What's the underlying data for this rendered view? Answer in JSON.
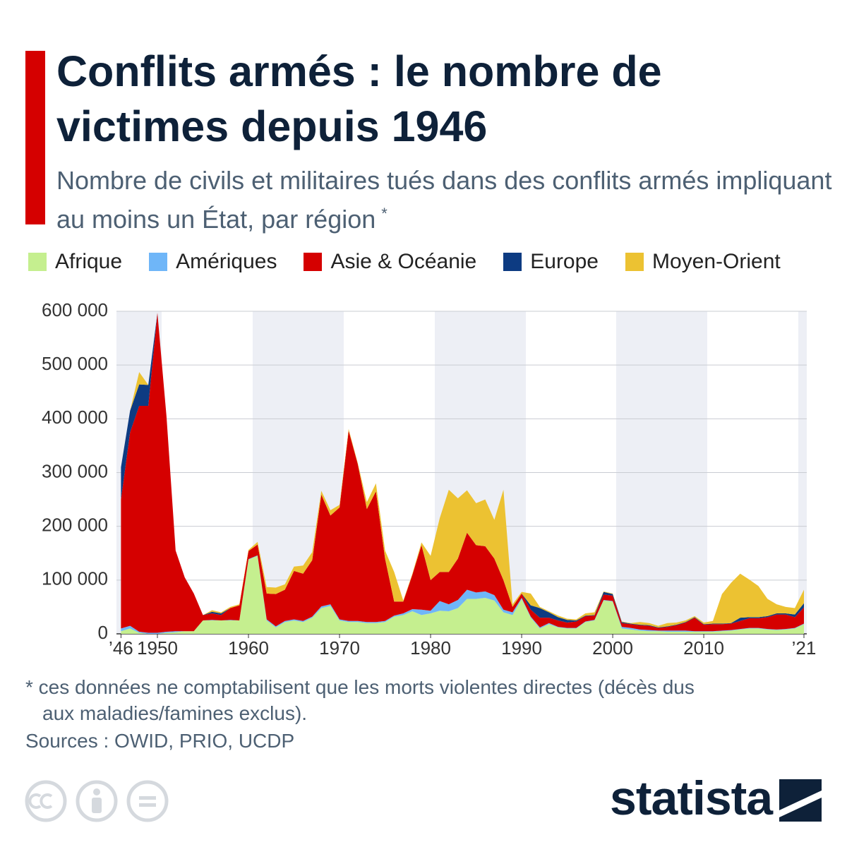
{
  "chart_data": {
    "type": "stacked_area",
    "title": "Conflits armés : le nombre de victimes depuis 1946",
    "subtitle": "Nombre de civils et militaires tués dans des conflits armés impliquant au moins un État, par région",
    "subtitle_note": "*",
    "footnote": "* ces données ne comptabilisent que les morts violentes directes (décès dus aux maladies/famines exclus).",
    "source": "Sources : OWID, PRIO, UCDP",
    "brand": "statista",
    "x": [
      1946,
      1947,
      1948,
      1949,
      1950,
      1951,
      1952,
      1953,
      1954,
      1955,
      1956,
      1957,
      1958,
      1959,
      1960,
      1961,
      1962,
      1963,
      1964,
      1965,
      1966,
      1967,
      1968,
      1969,
      1970,
      1971,
      1972,
      1973,
      1974,
      1975,
      1976,
      1977,
      1978,
      1979,
      1980,
      1981,
      1982,
      1983,
      1984,
      1985,
      1986,
      1987,
      1988,
      1989,
      1990,
      1991,
      1992,
      1993,
      1994,
      1995,
      1996,
      1997,
      1998,
      1999,
      2000,
      2001,
      2002,
      2003,
      2004,
      2005,
      2006,
      2007,
      2008,
      2009,
      2010,
      2011,
      2012,
      2013,
      2014,
      2015,
      2016,
      2017,
      2018,
      2019,
      2020,
      2021
    ],
    "xlim": [
      1946,
      2021
    ],
    "xticks": [
      {
        "value": 1946,
        "label": "’46"
      },
      1950,
      1960,
      1970,
      1980,
      1990,
      2000,
      2010,
      {
        "value": 2021,
        "label": "’21"
      }
    ],
    "ylim": [
      0,
      600000
    ],
    "yticks": [
      0,
      {
        "value": 100000,
        "label": "100 000"
      },
      {
        "value": 200000,
        "label": "200 000"
      },
      {
        "value": 300000,
        "label": "300 000"
      },
      {
        "value": 400000,
        "label": "400 000"
      },
      {
        "value": 500000,
        "label": "500 000"
      },
      {
        "value": 600000,
        "label": "600 000"
      }
    ],
    "grid": true,
    "series": [
      {
        "name": "Afrique",
        "color": "#c5ef8f",
        "values": [
          5000,
          10000,
          2000,
          0,
          0,
          2000,
          3000,
          5000,
          5000,
          25000,
          25000,
          25000,
          25000,
          25000,
          138000,
          145000,
          25000,
          12000,
          22000,
          25000,
          22000,
          30000,
          48000,
          52000,
          25000,
          22000,
          22000,
          20000,
          20000,
          22000,
          32000,
          35000,
          42000,
          35000,
          38000,
          43000,
          42000,
          48000,
          65000,
          65000,
          67000,
          62000,
          40000,
          35000,
          65000,
          30000,
          10000,
          18000,
          12000,
          10000,
          10000,
          22000,
          25000,
          62000,
          60000,
          10000,
          8000,
          6000,
          5000,
          5000,
          4000,
          4000,
          4000,
          4000,
          4000,
          4000,
          5000,
          6000,
          8000,
          10000,
          10000,
          8000,
          7000,
          8000,
          10000,
          18000
        ]
      },
      {
        "name": "Amériques",
        "color": "#6fb6f8",
        "values": [
          5000,
          5000,
          2000,
          2000,
          2000,
          2000,
          2000,
          0,
          0,
          0,
          1000,
          0,
          1000,
          0,
          1000,
          1000,
          2000,
          2000,
          2000,
          2000,
          2000,
          2000,
          3000,
          3000,
          2000,
          2000,
          2000,
          2000,
          2000,
          2000,
          2000,
          3000,
          4000,
          10000,
          5000,
          18000,
          13000,
          15000,
          17000,
          12000,
          12000,
          10000,
          5000,
          5000,
          2000,
          2000,
          2000,
          2000,
          1000,
          1000,
          1000,
          1000,
          1000,
          1000,
          1000,
          3000,
          3000,
          2000,
          2000,
          1000,
          2000,
          2000,
          2000,
          1000,
          1000,
          1000,
          1000,
          1000,
          1000,
          1000,
          1000,
          1000,
          1000,
          1000,
          1000,
          1000
        ]
      },
      {
        "name": "Asie & Océanie",
        "color": "#d50000",
        "values": [
          240000,
          360000,
          420000,
          422000,
          595000,
          400000,
          150000,
          100000,
          70000,
          10000,
          12000,
          10000,
          22000,
          28000,
          15000,
          20000,
          48000,
          60000,
          58000,
          90000,
          88000,
          105000,
          208000,
          165000,
          208000,
          354000,
          292000,
          210000,
          243000,
          116000,
          26000,
          22000,
          64000,
          120000,
          57000,
          54000,
          60000,
          77000,
          106000,
          88000,
          84000,
          68000,
          55000,
          10000,
          8000,
          13000,
          18000,
          10000,
          12000,
          10000,
          12000,
          10000,
          8000,
          10000,
          10000,
          7000,
          7000,
          8000,
          8000,
          5000,
          7000,
          10000,
          15000,
          25000,
          12000,
          13000,
          12000,
          12000,
          15000,
          18000,
          18000,
          22000,
          28000,
          27000,
          20000,
          30000
        ]
      },
      {
        "name": "Europe",
        "color": "#0d3b82",
        "values": [
          60000,
          40000,
          40000,
          39000,
          0,
          0,
          0,
          0,
          0,
          0,
          3000,
          3000,
          0,
          0,
          0,
          0,
          0,
          0,
          0,
          0,
          0,
          0,
          0,
          0,
          0,
          0,
          0,
          0,
          0,
          0,
          0,
          0,
          0,
          0,
          0,
          0,
          0,
          0,
          0,
          0,
          0,
          0,
          0,
          0,
          0,
          8000,
          18000,
          10000,
          6000,
          5000,
          2000,
          1000,
          1000,
          5000,
          3000,
          2000,
          1000,
          1000,
          1000,
          1000,
          1000,
          1000,
          1000,
          1000,
          1000,
          1000,
          1000,
          1000,
          6000,
          2000,
          2000,
          2000,
          2000,
          2000,
          5000,
          8000
        ]
      },
      {
        "name": "Moyen-Orient",
        "color": "#ecc232",
        "values": [
          0,
          0,
          23000,
          0,
          0,
          0,
          0,
          0,
          0,
          0,
          3000,
          2000,
          2000,
          2000,
          2000,
          5000,
          12000,
          12000,
          10000,
          8000,
          15000,
          15000,
          7000,
          10000,
          5000,
          3000,
          2000,
          13000,
          15000,
          15000,
          55000,
          2000,
          2000,
          5000,
          45000,
          100000,
          153000,
          112000,
          79000,
          78000,
          87000,
          72000,
          168000,
          5000,
          3000,
          22000,
          2000,
          2000,
          3000,
          2000,
          2000,
          4000,
          5000,
          1000,
          1000,
          1000,
          1000,
          5000,
          4000,
          3000,
          6000,
          4000,
          3000,
          2000,
          3000,
          5000,
          55000,
          75000,
          82000,
          70000,
          58000,
          32000,
          17000,
          12000,
          12000,
          25000
        ]
      }
    ]
  }
}
